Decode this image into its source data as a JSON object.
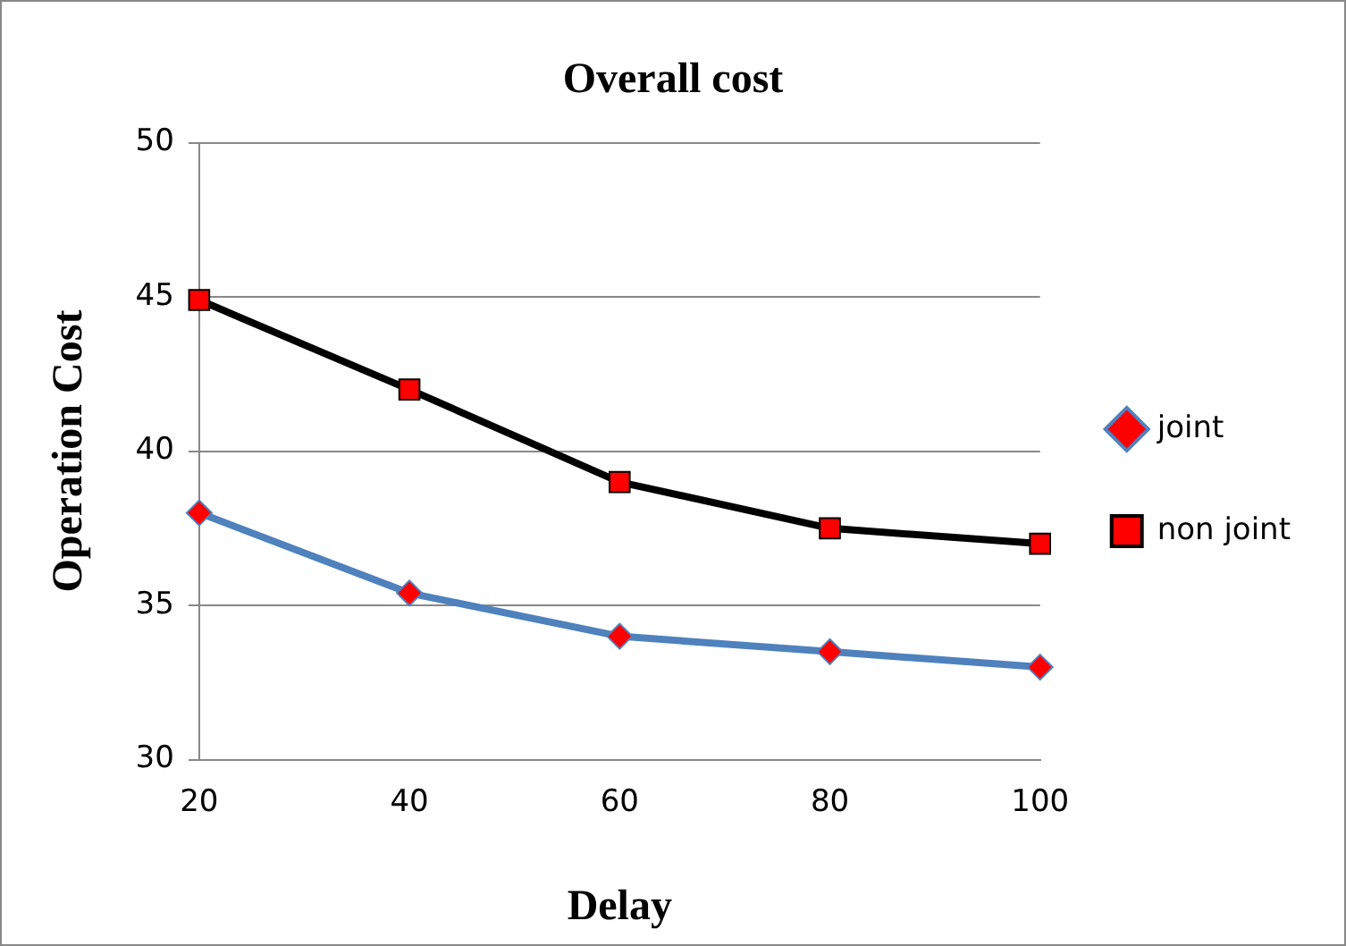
{
  "chart_data": {
    "type": "line",
    "title": "Overall cost",
    "xlabel": "Delay",
    "ylabel": "Operation Cost",
    "categories": [
      "20",
      "40",
      "60",
      "80",
      "100"
    ],
    "series": [
      {
        "name": "joint",
        "color": "#4f81bd",
        "colors": [
          "#ff0000",
          "#ff0000",
          "#ff0000",
          "#ff0000",
          "#ff0000"
        ],
        "marker": "diamond",
        "values": [
          38,
          35.4,
          34,
          33.5,
          33
        ]
      },
      {
        "name": "non joint",
        "color": "#000000",
        "colors": [
          "#ff0000",
          "#ff0000",
          "#ff0000",
          "#ff0000",
          "#ff0000"
        ],
        "marker": "square",
        "values": [
          44.9,
          42,
          39,
          37.5,
          37
        ]
      }
    ],
    "ylim": [
      30,
      50
    ],
    "yticks": [
      30,
      35,
      40,
      45,
      50
    ],
    "grid": "y",
    "legend": "right"
  }
}
